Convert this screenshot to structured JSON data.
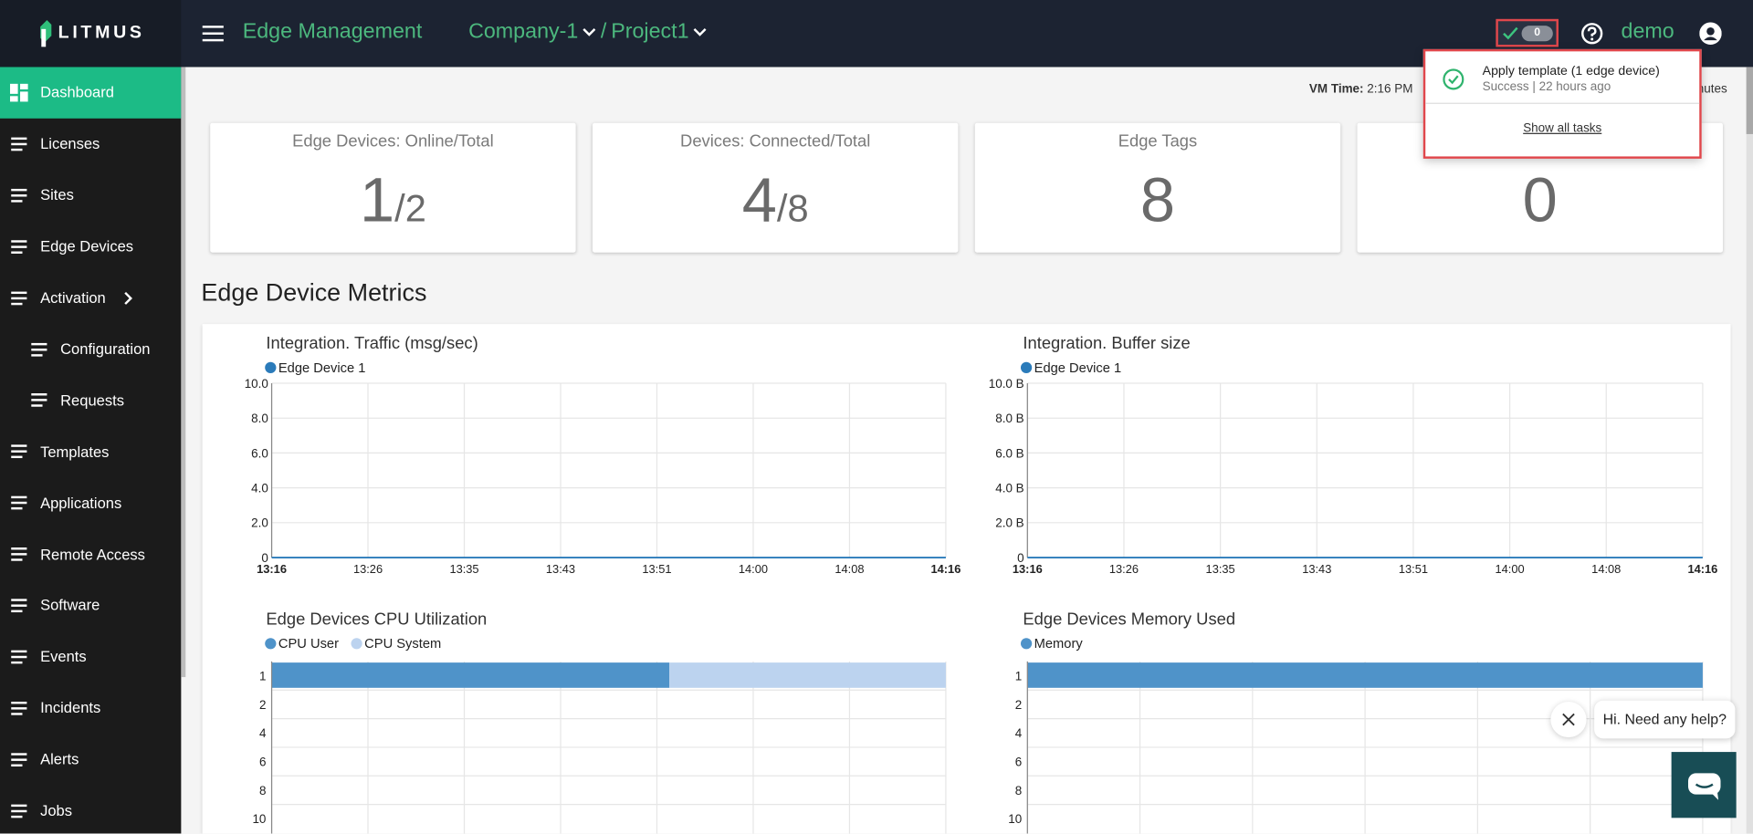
{
  "header": {
    "logo": "LITMUS",
    "app": "Edge Management",
    "company": "Company-1",
    "separator": "/",
    "project": "Project1",
    "task_count": 0,
    "user": "demo"
  },
  "sidebar": {
    "items": [
      "Dashboard",
      "Licenses",
      "Sites",
      "Edge Devices",
      "Activation",
      "Configuration",
      "Requests",
      "Templates",
      "Applications",
      "Remote Access",
      "Software",
      "Events",
      "Incidents",
      "Alerts",
      "Jobs"
    ]
  },
  "vm_time": {
    "label": "VM Time:",
    "value": "2:16 PM",
    "suffix": "nutes"
  },
  "cards_separator": "/",
  "cards": [
    {
      "title": "Edge Devices: Online/Total",
      "value": 1,
      "total": 2
    },
    {
      "title": "Devices: Connected/Total",
      "value": 4,
      "total": 8
    },
    {
      "title": "Edge Tags",
      "value": 8
    },
    {
      "value": 0
    }
  ],
  "popup": {
    "title": "Apply template (1 edge device)",
    "status": "Success | 22 hours ago",
    "link": "Show all tasks"
  },
  "section_title": "Edge Device Metrics",
  "chart_data": [
    {
      "type": "line",
      "title": "Integration. Traffic (msg/sec)",
      "categories": [
        "13:16",
        "13:26",
        "13:35",
        "13:43",
        "13:51",
        "14:00",
        "14:08",
        "14:16"
      ],
      "series": [
        {
          "name": "Edge Device 1",
          "color": "#2b7bba",
          "values": [
            0,
            0,
            0,
            0,
            0,
            0,
            0,
            0
          ]
        }
      ],
      "ylim": [
        0,
        10
      ],
      "yticks": [
        0,
        {
          "value": 2,
          "label": "2.0"
        },
        {
          "value": 4,
          "label": "4.0"
        },
        {
          "value": 6,
          "label": "6.0"
        },
        {
          "value": 8,
          "label": "8.0"
        },
        {
          "value": 10,
          "label": "10.0"
        }
      ],
      "grid": true
    },
    {
      "type": "line",
      "title": "Integration. Buffer size",
      "categories": [
        "13:16",
        "13:26",
        "13:35",
        "13:43",
        "13:51",
        "14:00",
        "14:08",
        "14:16"
      ],
      "series": [
        {
          "name": "Edge Device 1",
          "color": "#2b7bba",
          "values": [
            0,
            0,
            0,
            0,
            0,
            0,
            0,
            0
          ]
        }
      ],
      "ylim": [
        0,
        10
      ],
      "yticks": [
        0,
        {
          "value": 2,
          "label": "2.0 B"
        },
        {
          "value": 4,
          "label": "4.0 B"
        },
        {
          "value": 6,
          "label": "6.0 B"
        },
        {
          "value": 8,
          "label": "8.0 B"
        },
        {
          "value": 10,
          "label": "10.0 B"
        }
      ],
      "grid": true
    },
    {
      "type": "bar",
      "orientation": "horizontal",
      "stacked": true,
      "title": "Edge Devices CPU Utilization",
      "categories": [
        "1",
        "2",
        "4",
        "6",
        "8",
        "10"
      ],
      "series": [
        {
          "name": "CPU User",
          "color": "#4f93c9",
          "values": [
            59,
            null,
            null,
            null,
            null,
            null
          ]
        },
        {
          "name": "CPU System",
          "color": "#bcd3ef",
          "values": [
            41,
            null,
            null,
            null,
            null,
            null
          ]
        }
      ],
      "xlim": [
        0,
        100
      ],
      "grid": true
    },
    {
      "type": "bar",
      "orientation": "horizontal",
      "stacked": true,
      "title": "Edge Devices Memory Used",
      "categories": [
        "1",
        "2",
        "4",
        "6",
        "8",
        "10"
      ],
      "series": [
        {
          "name": "Memory",
          "color": "#4f93c9",
          "values": [
            100,
            null,
            null,
            null,
            null,
            null
          ]
        }
      ],
      "xlim": [
        0,
        100
      ],
      "grid": true
    }
  ],
  "chat": {
    "message": "Hi. Need any help?"
  }
}
